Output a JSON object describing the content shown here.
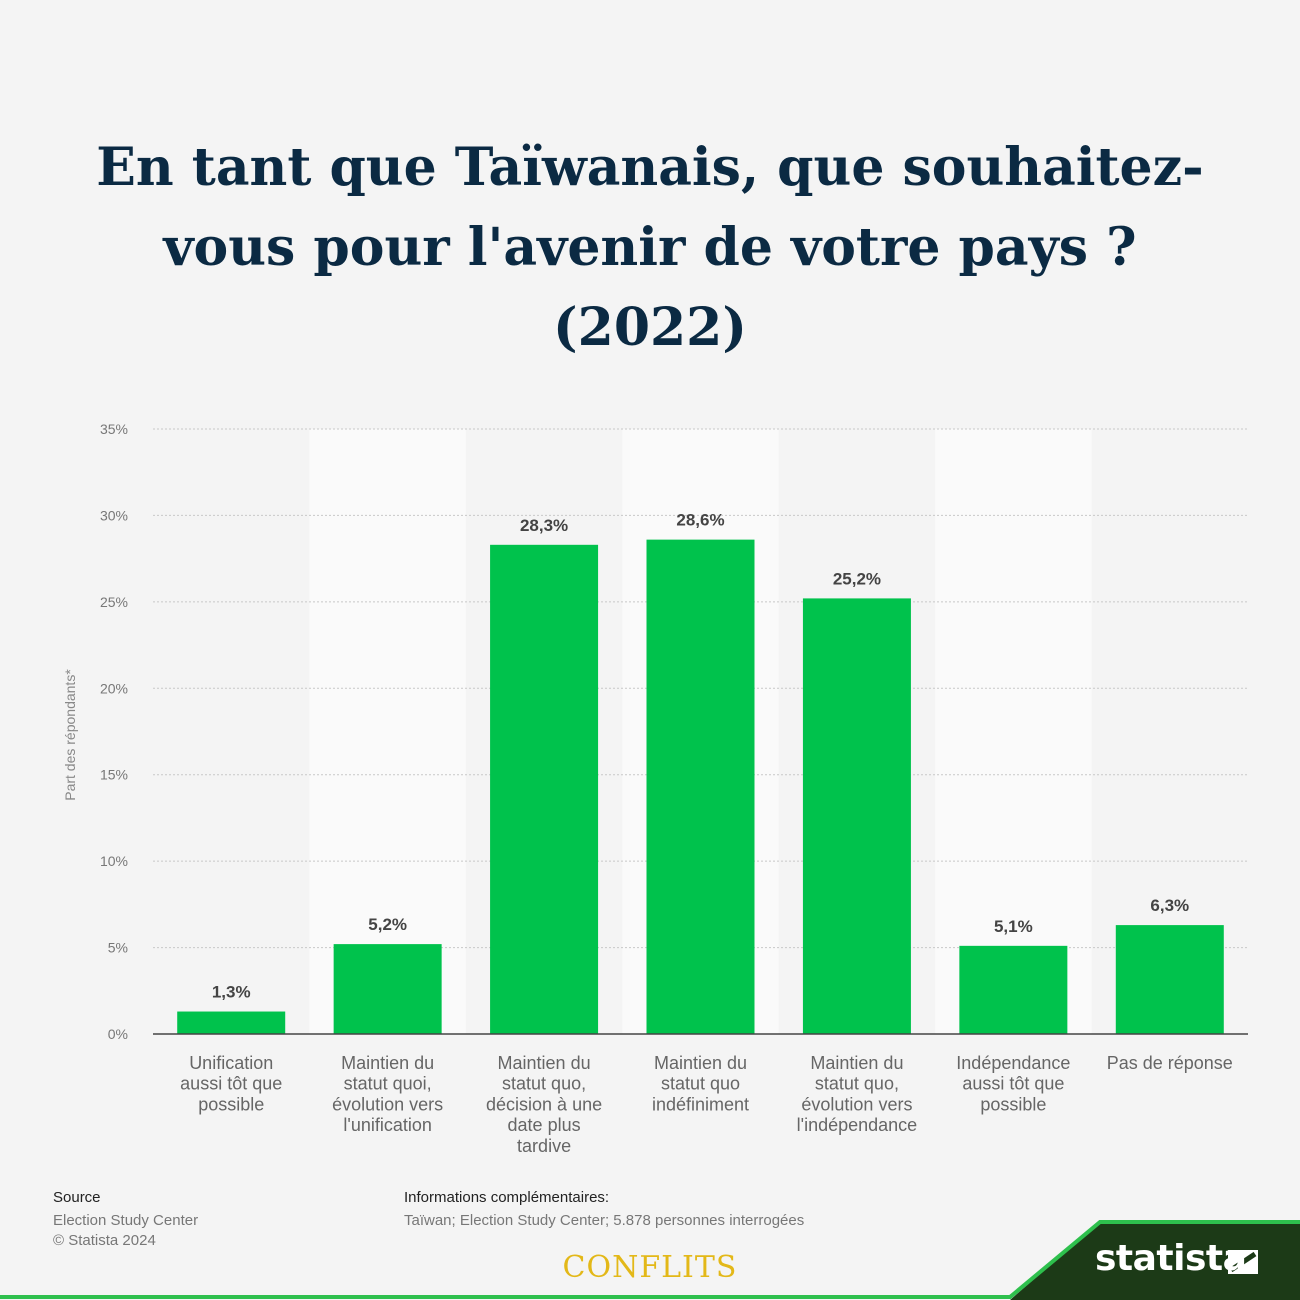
{
  "title_lines": [
    "En tant que Taïwanais, que souhaitez-",
    "vous pour l'avenir de votre pays ?",
    "(2022)"
  ],
  "chart_data": {
    "type": "bar",
    "title": "En tant que Taïwanais, que souhaitez-vous pour l'avenir de votre pays ? (2022)",
    "ylabel": "Part des répondants*",
    "xlabel": "",
    "ylim": [
      0,
      35
    ],
    "yticks": [
      0,
      5,
      10,
      15,
      20,
      25,
      30,
      35
    ],
    "ytick_labels": [
      "0%",
      "5%",
      "10%",
      "15%",
      "20%",
      "25%",
      "30%",
      "35%"
    ],
    "grid": true,
    "bar_color": "#00c24c",
    "categories": [
      [
        "Unification",
        "aussi tôt que",
        "possible"
      ],
      [
        "Maintien du",
        "statut quoi,",
        "évolution vers",
        "l'unification"
      ],
      [
        "Maintien du",
        "statut quo,",
        "décision à une",
        "date plus",
        "tardive"
      ],
      [
        "Maintien du",
        "statut quo",
        "indéfiniment"
      ],
      [
        "Maintien du",
        "statut quo,",
        "évolution vers",
        "l'indépendance"
      ],
      [
        "Indépendance",
        "aussi tôt que",
        "possible"
      ],
      [
        "Pas de réponse"
      ]
    ],
    "values": [
      1.3,
      5.2,
      28.3,
      28.6,
      25.2,
      5.1,
      6.3
    ],
    "value_labels": [
      "1,3%",
      "5,2%",
      "28,3%",
      "28,6%",
      "25,2%",
      "5,1%",
      "6,3%"
    ]
  },
  "footer": {
    "source_heading": "Source",
    "source_lines": [
      "Election Study Center",
      "© Statista 2024"
    ],
    "info_heading": "Informations complémentaires:",
    "info_line": "Taïwan; Election Study Center; 5.878 personnes interrogées"
  },
  "brand": {
    "conflits": "CONFLITS",
    "statista": "statista"
  },
  "colors": {
    "title": "#0b2a43",
    "bar": "#00c24c",
    "band": "#1c3a17",
    "accent_line": "#2ec04d",
    "conflits": "#e3b818"
  }
}
